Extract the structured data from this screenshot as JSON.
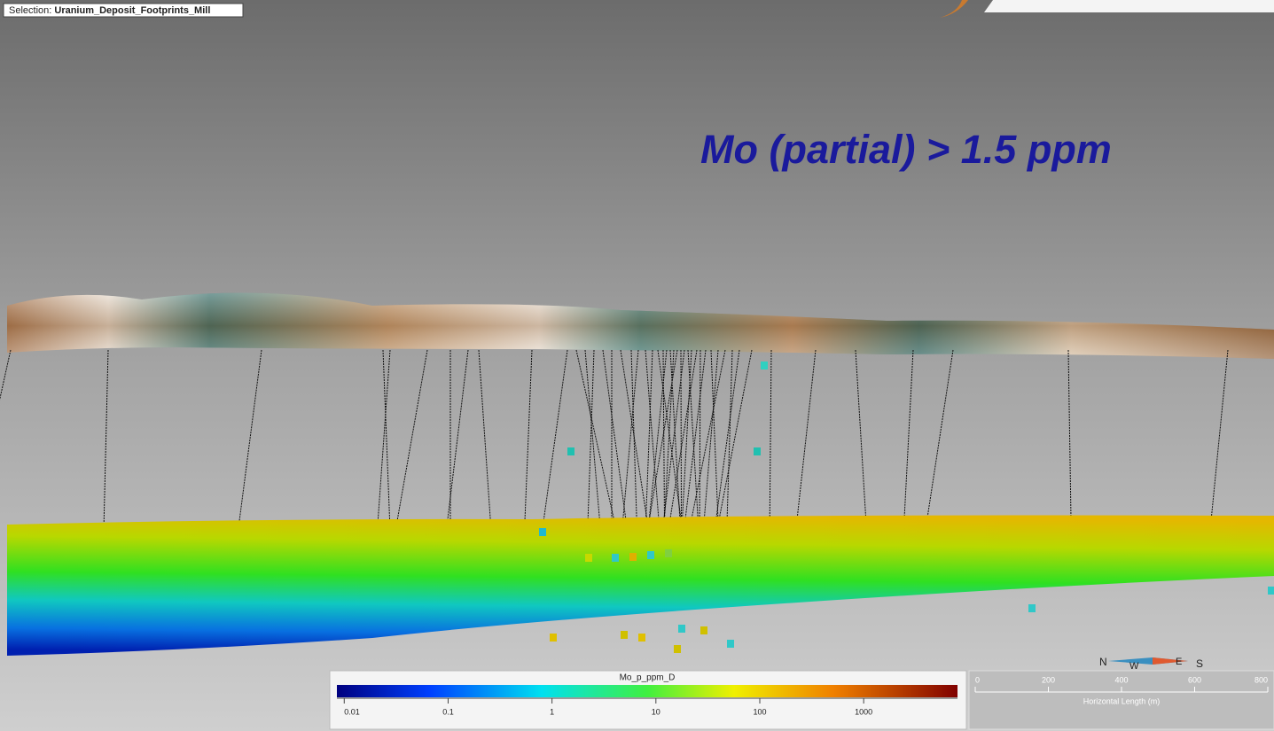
{
  "selection": {
    "label": "Selection:",
    "value": "Uranium_Deposit_Footprints_Mill"
  },
  "title": "Mo (partial) > 1.5 ppm",
  "colorbar": {
    "title": "Mo_p_ppm_D",
    "scale": "log",
    "lim": [
      0.0085,
      8000
    ],
    "ticks": [
      0.01,
      0.1,
      1,
      10,
      100,
      1000
    ]
  },
  "scalebar": {
    "label": "Horizontal Length (m)",
    "lim": [
      0,
      800
    ],
    "ticks": [
      0,
      200,
      400,
      600,
      800
    ]
  },
  "compass": {
    "north": "N",
    "west": "W",
    "east": "E",
    "south": "S"
  }
}
